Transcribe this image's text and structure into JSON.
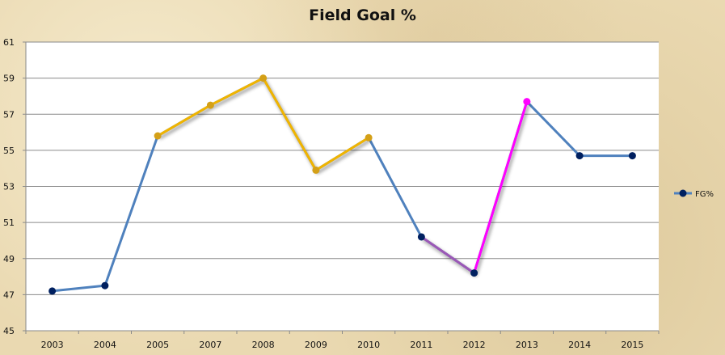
{
  "chart_data": {
    "type": "line",
    "title": "Field Goal %",
    "categories": [
      "2003",
      "2004",
      "2005",
      "2007",
      "2008",
      "2009",
      "2010",
      "2011",
      "2012",
      "2013",
      "2014",
      "2015"
    ],
    "series": [
      {
        "name": "FG%",
        "values": [
          47.2,
          47.5,
          55.8,
          57.5,
          59.0,
          53.9,
          55.7,
          50.2,
          48.2,
          57.7,
          54.7,
          54.7
        ],
        "color": "#4f81bd",
        "marker_color": "#002060"
      }
    ],
    "highlights": [
      {
        "from": "2005",
        "to": "2010",
        "color": "#f0b400"
      },
      {
        "from": "2011",
        "to": "2012",
        "color": "#9b59b6"
      },
      {
        "from": "2012",
        "to": "2013",
        "color": "#ff00ff"
      }
    ],
    "ylim": [
      45,
      61
    ],
    "yticks": [
      45,
      47,
      49,
      51,
      53,
      55,
      57,
      59,
      61
    ],
    "grid": true,
    "legend": "right",
    "xlabel": "",
    "ylabel": ""
  }
}
